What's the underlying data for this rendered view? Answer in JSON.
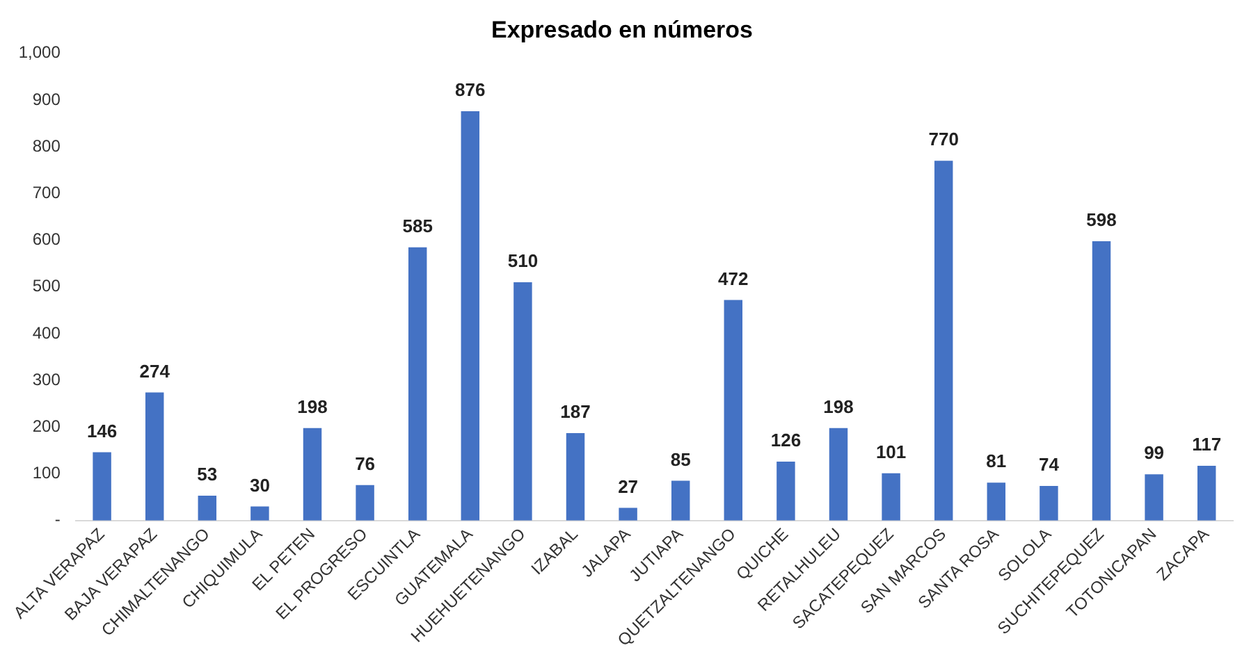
{
  "chart_data": {
    "type": "bar",
    "title": "Expresado en números",
    "categories": [
      "ALTA VERAPAZ",
      "BAJA VERAPAZ",
      "CHIMALTENANGO",
      "CHIQUIMULA",
      "EL PETEN",
      "EL PROGRESO",
      "ESCUINTLA",
      "GUATEMALA",
      "HUEHUETENANGO",
      "IZABAL",
      "JALAPA",
      "JUTIAPA",
      "QUETZALTENANGO",
      "QUICHE",
      "RETALHULEU",
      "SACATEPEQUEZ",
      "SAN MARCOS",
      "SANTA ROSA",
      "SOLOLA",
      "SUCHITEPEQUEZ",
      "TOTONICAPAN",
      "ZACAPA"
    ],
    "values": [
      146,
      274,
      53,
      30,
      198,
      76,
      585,
      876,
      510,
      187,
      27,
      85,
      472,
      126,
      198,
      101,
      770,
      81,
      74,
      598,
      99,
      117
    ],
    "color": "#4472c4",
    "ylim": [
      0,
      1000
    ],
    "yticks": [
      {
        "value": 0,
        "label": "-"
      },
      100,
      200,
      300,
      400,
      500,
      600,
      700,
      800,
      900,
      {
        "value": 1000,
        "label": "1,000"
      }
    ],
    "grid": false,
    "legend": false,
    "data_labels": true
  }
}
